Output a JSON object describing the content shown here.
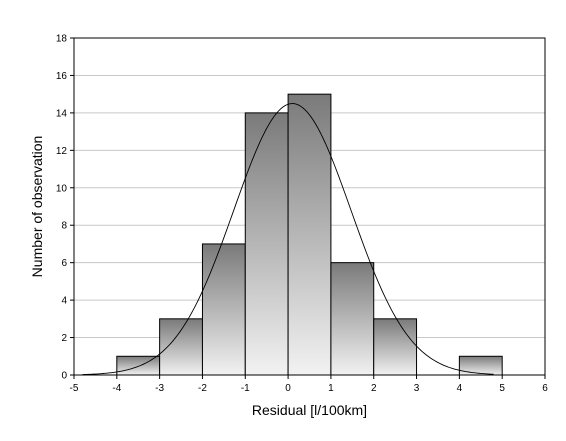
{
  "chart_data": {
    "type": "bar",
    "subtype": "histogram",
    "xlabel": "Residual [l/100km]",
    "ylabel": "Number of observation",
    "xlim": [
      -5,
      6
    ],
    "ylim": [
      0,
      18
    ],
    "x_ticks": [
      -5,
      -4,
      -3,
      -2,
      -1,
      0,
      1,
      2,
      3,
      4,
      5,
      6
    ],
    "y_ticks": [
      0,
      2,
      4,
      6,
      8,
      10,
      12,
      14,
      16,
      18
    ],
    "grid": "horizontal",
    "bins": [
      {
        "from": -4,
        "to": -3,
        "count": 1
      },
      {
        "from": -3,
        "to": -2,
        "count": 3
      },
      {
        "from": -2,
        "to": -1,
        "count": 7
      },
      {
        "from": -1,
        "to": 0,
        "count": 14
      },
      {
        "from": 0,
        "to": 1,
        "count": 15
      },
      {
        "from": 1,
        "to": 2,
        "count": 6
      },
      {
        "from": 2,
        "to": 3,
        "count": 3
      },
      {
        "from": 4,
        "to": 5,
        "count": 1
      }
    ],
    "fitted_curve": {
      "type": "normal",
      "mean": 0.1,
      "sd": 1.37,
      "peak": 14.5
    },
    "colors": {
      "bar_dark": "#7a7a7a",
      "bar_light": "#f2f2f2",
      "outline": "#000000",
      "grid": "#c8c8c8"
    }
  }
}
